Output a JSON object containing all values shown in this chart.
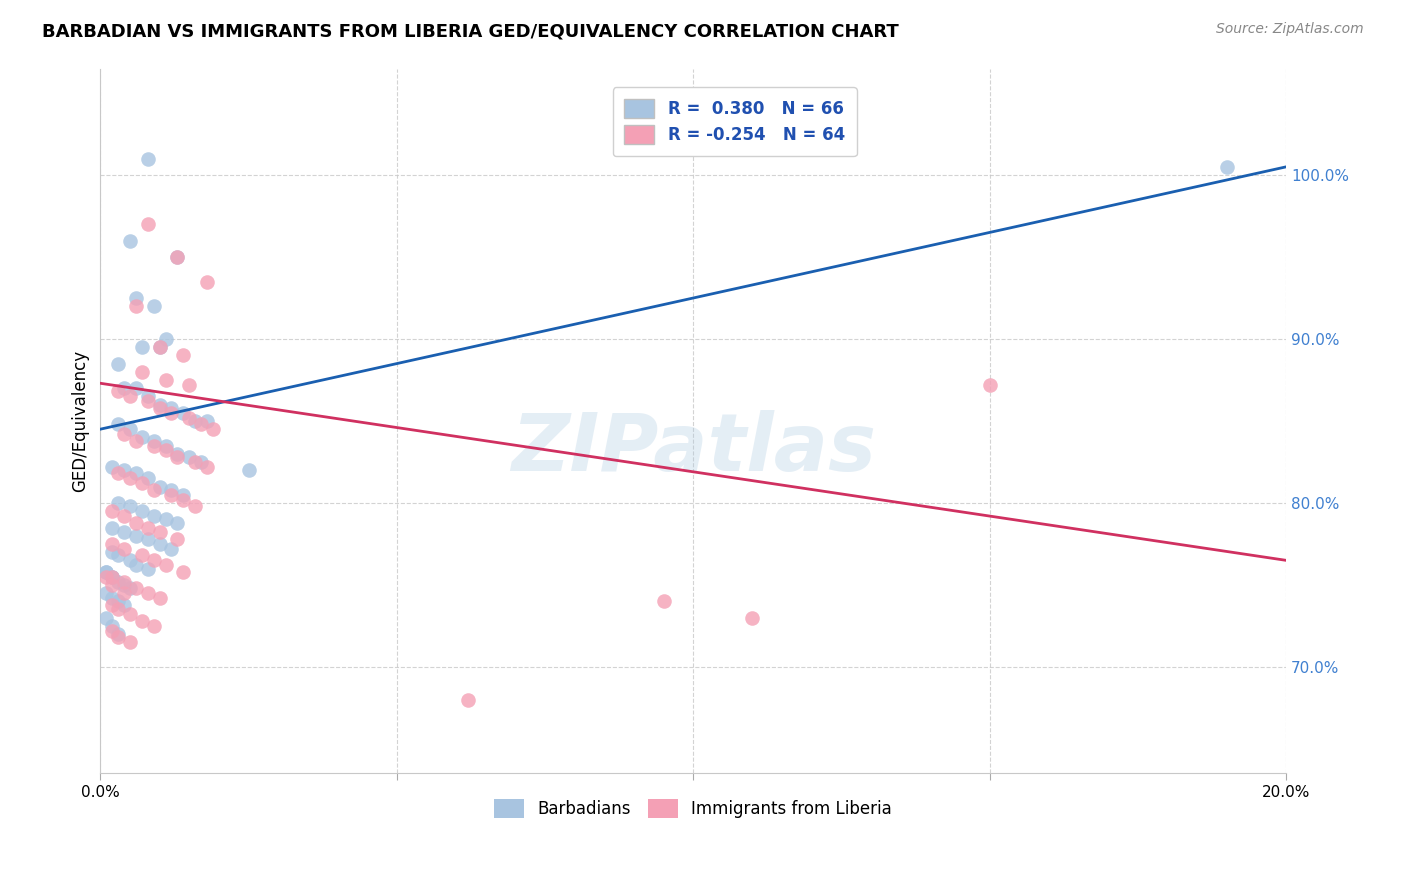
{
  "title": "BARBADIAN VS IMMIGRANTS FROM LIBERIA GED/EQUIVALENCY CORRELATION CHART",
  "source": "Source: ZipAtlas.com",
  "ylabel": "GED/Equivalency",
  "yticks": [
    0.7,
    0.8,
    0.9,
    1.0
  ],
  "ytick_labels": [
    "70.0%",
    "80.0%",
    "90.0%",
    "100.0%"
  ],
  "xmin": 0.0,
  "xmax": 0.2,
  "ymin": 0.635,
  "ymax": 1.065,
  "blue_color": "#a8c4e0",
  "pink_color": "#f4a0b5",
  "blue_line_color": "#1a5fb0",
  "pink_line_color": "#d03060",
  "blue_R": 0.38,
  "blue_N": 66,
  "pink_R": -0.254,
  "pink_N": 64,
  "barbadians_label": "Barbadians",
  "liberia_label": "Immigrants from Liberia",
  "watermark": "ZIPatlas",
  "blue_line_x": [
    0.0,
    0.2
  ],
  "blue_line_y": [
    0.845,
    1.005
  ],
  "pink_line_x": [
    0.0,
    0.2
  ],
  "pink_line_y": [
    0.873,
    0.765
  ],
  "blue_scatter_x": [
    0.008,
    0.005,
    0.013,
    0.006,
    0.009,
    0.011,
    0.007,
    0.01,
    0.003,
    0.004,
    0.006,
    0.008,
    0.01,
    0.012,
    0.014,
    0.016,
    0.018,
    0.003,
    0.005,
    0.007,
    0.009,
    0.011,
    0.013,
    0.015,
    0.017,
    0.002,
    0.004,
    0.006,
    0.008,
    0.01,
    0.012,
    0.014,
    0.003,
    0.005,
    0.007,
    0.009,
    0.011,
    0.013,
    0.002,
    0.004,
    0.006,
    0.008,
    0.01,
    0.012,
    0.002,
    0.003,
    0.005,
    0.006,
    0.008,
    0.001,
    0.002,
    0.003,
    0.004,
    0.005,
    0.001,
    0.002,
    0.003,
    0.004,
    0.001,
    0.002,
    0.003,
    0.001,
    0.002,
    0.19,
    0.025
  ],
  "blue_scatter_y": [
    1.01,
    0.96,
    0.95,
    0.925,
    0.92,
    0.9,
    0.895,
    0.895,
    0.885,
    0.87,
    0.87,
    0.865,
    0.86,
    0.858,
    0.855,
    0.85,
    0.85,
    0.848,
    0.845,
    0.84,
    0.838,
    0.835,
    0.83,
    0.828,
    0.825,
    0.822,
    0.82,
    0.818,
    0.815,
    0.81,
    0.808,
    0.805,
    0.8,
    0.798,
    0.795,
    0.792,
    0.79,
    0.788,
    0.785,
    0.782,
    0.78,
    0.778,
    0.775,
    0.772,
    0.77,
    0.768,
    0.765,
    0.762,
    0.76,
    0.758,
    0.755,
    0.752,
    0.75,
    0.748,
    0.745,
    0.742,
    0.74,
    0.738,
    0.73,
    0.725,
    0.72,
    0.758,
    0.755,
    1.005,
    0.82
  ],
  "pink_scatter_x": [
    0.008,
    0.013,
    0.018,
    0.006,
    0.01,
    0.014,
    0.007,
    0.011,
    0.015,
    0.003,
    0.005,
    0.008,
    0.01,
    0.012,
    0.015,
    0.017,
    0.019,
    0.004,
    0.006,
    0.009,
    0.011,
    0.013,
    0.016,
    0.018,
    0.003,
    0.005,
    0.007,
    0.009,
    0.012,
    0.014,
    0.016,
    0.002,
    0.004,
    0.006,
    0.008,
    0.01,
    0.013,
    0.002,
    0.004,
    0.007,
    0.009,
    0.011,
    0.014,
    0.002,
    0.004,
    0.006,
    0.008,
    0.01,
    0.002,
    0.003,
    0.005,
    0.007,
    0.009,
    0.002,
    0.003,
    0.005,
    0.001,
    0.002,
    0.004,
    0.15,
    0.11,
    0.095,
    0.062
  ],
  "pink_scatter_y": [
    0.97,
    0.95,
    0.935,
    0.92,
    0.895,
    0.89,
    0.88,
    0.875,
    0.872,
    0.868,
    0.865,
    0.862,
    0.858,
    0.855,
    0.852,
    0.848,
    0.845,
    0.842,
    0.838,
    0.835,
    0.832,
    0.828,
    0.825,
    0.822,
    0.818,
    0.815,
    0.812,
    0.808,
    0.805,
    0.802,
    0.798,
    0.795,
    0.792,
    0.788,
    0.785,
    0.782,
    0.778,
    0.775,
    0.772,
    0.768,
    0.765,
    0.762,
    0.758,
    0.755,
    0.752,
    0.748,
    0.745,
    0.742,
    0.738,
    0.735,
    0.732,
    0.728,
    0.725,
    0.722,
    0.718,
    0.715,
    0.755,
    0.75,
    0.745,
    0.872,
    0.73,
    0.74,
    0.68
  ]
}
